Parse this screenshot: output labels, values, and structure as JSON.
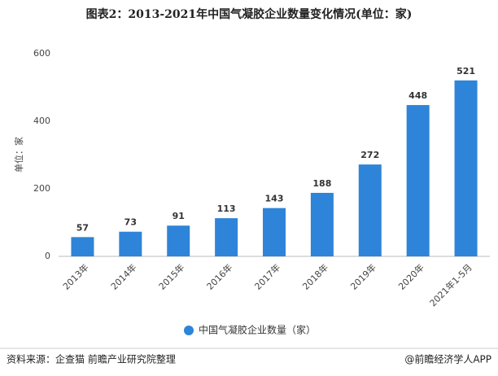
{
  "chart_data": {
    "type": "bar",
    "title": "图表2：2013-2021年中国气凝胶企业数量变化情况(单位：家)",
    "y_label": "单位：家",
    "categories": [
      "2013年",
      "2014年",
      "2015年",
      "2016年",
      "2017年",
      "2018年",
      "2019年",
      "2020年",
      "2021年1-5月"
    ],
    "series": [
      {
        "name": "中国气凝胶企业数量（家）",
        "color": "#2e84d8",
        "values": [
          57,
          73,
          91,
          113,
          143,
          188,
          272,
          448,
          521
        ]
      }
    ],
    "ylim": [
      0,
      600
    ],
    "yticks": [
      0,
      200,
      400,
      600
    ],
    "grid": false,
    "legend": "bottom"
  },
  "source": "资料来源：企查猫 前瞻产业研究院整理",
  "credit": "@前瞻经济学人APP"
}
